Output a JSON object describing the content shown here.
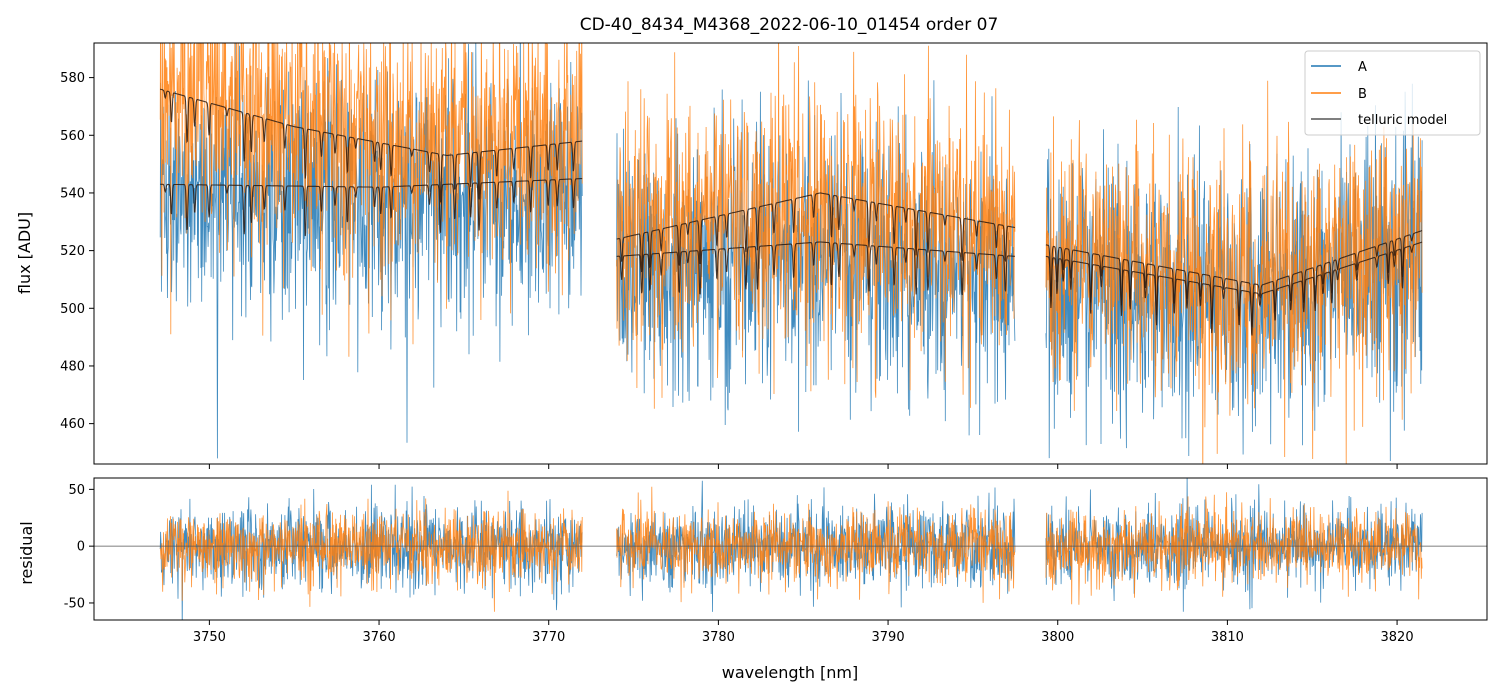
{
  "chart_data": [
    {
      "type": "line",
      "title": "CD-40_8434_M4368_2022-06-10_01454  order 07",
      "xlabel": "",
      "ylabel": "flux [ADU]",
      "xlim": [
        3743.2,
        3825.3
      ],
      "ylim": [
        446,
        592
      ],
      "yticks": [
        460,
        480,
        500,
        520,
        540,
        560,
        580
      ],
      "xticks": [
        3750,
        3760,
        3770,
        3780,
        3790,
        3800,
        3810,
        3820
      ],
      "x_segments": [
        [
          3747.1,
          3772.0
        ],
        [
          3774.0,
          3797.5
        ],
        [
          3799.3,
          3821.5
        ]
      ],
      "legend_position": "top-right",
      "series": [
        {
          "name": "A",
          "color": "#1f77b4",
          "baseline": [
            [
              3747.1,
              541
            ],
            [
              3760,
              538
            ],
            [
              3772,
              540
            ],
            [
              3774,
              517
            ],
            [
              3786,
              521
            ],
            [
              3797.5,
              512
            ],
            [
              3799.3,
              513
            ],
            [
              3810,
              503
            ],
            [
              3821.5,
              518
            ]
          ],
          "noise_sd": 22
        },
        {
          "name": "B",
          "color": "#ff7f0e",
          "baseline": [
            [
              3747.1,
              573
            ],
            [
              3760,
              560
            ],
            [
              3772,
              555
            ],
            [
              3774,
              526
            ],
            [
              3786,
              537
            ],
            [
              3797.5,
              524
            ],
            [
              3799.3,
              519
            ],
            [
              3810,
              512
            ],
            [
              3821.5,
              523
            ]
          ],
          "noise_sd": 22
        },
        {
          "name": "telluric model",
          "color": "#555555",
          "note_level": "model A and B curves"
        }
      ],
      "telluric_models": [
        {
          "for": "A",
          "baseline": [
            [
              3747.1,
              543
            ],
            [
              3760,
              542
            ],
            [
              3772,
              545
            ],
            [
              3774,
              518
            ],
            [
              3786,
              523
            ],
            [
              3797.5,
              518
            ],
            [
              3799.3,
              518
            ],
            [
              3812,
              505
            ],
            [
              3821.5,
              523
            ]
          ]
        },
        {
          "for": "B",
          "baseline": [
            [
              3747.1,
              576
            ],
            [
              3755,
              563
            ],
            [
              3764,
              553
            ],
            [
              3772,
              558
            ],
            [
              3774,
              524
            ],
            [
              3786,
              540
            ],
            [
              3797.5,
              528
            ],
            [
              3799.3,
              522
            ],
            [
              3812,
              508
            ],
            [
              3821.5,
              527
            ]
          ]
        }
      ]
    },
    {
      "type": "line",
      "title": "",
      "xlabel": "wavelength [nm]",
      "ylabel": "residual",
      "xlim": [
        3743.2,
        3825.3
      ],
      "ylim": [
        -65,
        60
      ],
      "yticks": [
        -50,
        0,
        50
      ],
      "xticks": [
        3750,
        3760,
        3770,
        3780,
        3790,
        3800,
        3810,
        3820
      ],
      "series": [
        {
          "name": "A",
          "color": "#1f77b4",
          "noise_sd": 18
        },
        {
          "name": "B",
          "color": "#ff7f0e",
          "noise_sd": 16
        }
      ],
      "zero_line": 0
    }
  ]
}
